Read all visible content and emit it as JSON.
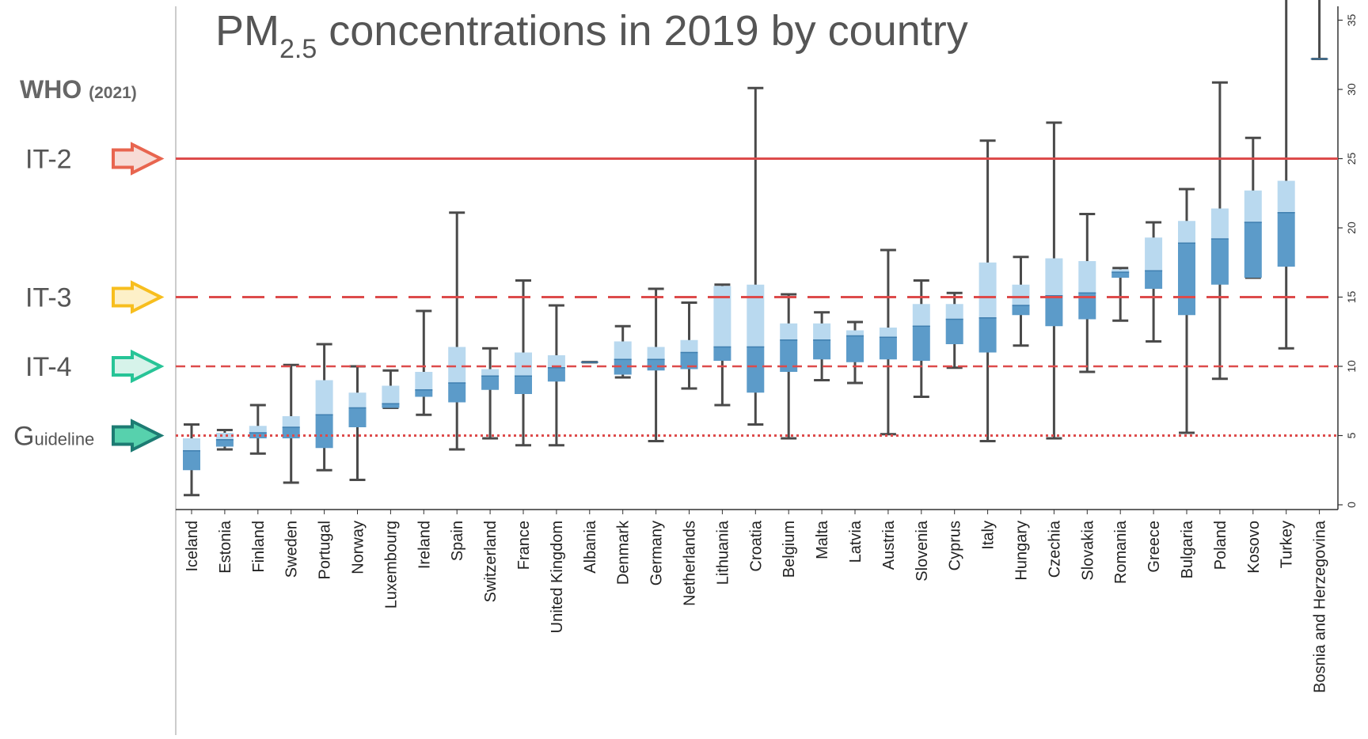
{
  "title": {
    "main": "PM",
    "sub": "2.5",
    "rest": " concentrations in 2019 by country"
  },
  "who": {
    "label": "WHO",
    "year": "(2021)"
  },
  "levels": [
    {
      "id": "it2",
      "label": "IT-2",
      "value": 25,
      "line": "solid",
      "arrow_fill": "#f7dcd6",
      "arrow_stroke": "#e8654f"
    },
    {
      "id": "it3",
      "label": "IT-3",
      "value": 15,
      "line": "long-dash",
      "arrow_fill": "#fdf0c8",
      "arrow_stroke": "#f7be1e"
    },
    {
      "id": "it4",
      "label": "IT-4",
      "value": 10,
      "line": "dash",
      "arrow_fill": "#d6f3ea",
      "arrow_stroke": "#27c497"
    },
    {
      "id": "guideline",
      "label_big": "G",
      "label_small": "uideline",
      "value": 5,
      "line": "dot",
      "arrow_fill": "#57d1ad",
      "arrow_stroke": "#1d7b73"
    }
  ],
  "colors": {
    "line": "#dd4b4b",
    "whisker": "#4a4a4a",
    "box_light": "#b9d9ef",
    "box_dark": "#5c9bc9",
    "axis_text": "#333333",
    "label_text": "#555555"
  },
  "chart_data": {
    "type": "box",
    "title": "PM2.5 concentrations in 2019 by country",
    "ylim": [
      0,
      37
    ],
    "yticks": [
      "0",
      "5",
      "10",
      "15",
      "20",
      "25",
      "30",
      "35"
    ],
    "ytick_values": [
      0,
      5,
      10,
      15,
      20,
      25,
      30,
      35
    ],
    "grid": false,
    "categories": [
      "Iceland",
      "Estonia",
      "Finland",
      "Sweden",
      "Portugal",
      "Norway",
      "Luxembourg",
      "Ireland",
      "Spain",
      "Switzerland",
      "France",
      "United Kingdom",
      "Albania",
      "Denmark",
      "Germany",
      "Netherlands",
      "Lithuania",
      "Croatia",
      "Belgium",
      "Malta",
      "Latvia",
      "Austria",
      "Slovenia",
      "Cyprus",
      "Italy",
      "Hungary",
      "Czechia",
      "Slovakia",
      "Romania",
      "Greece",
      "Bulgaria",
      "Poland",
      "Kosovo",
      "Turkey",
      "Bosnia and Herzegovina"
    ],
    "boxes": [
      {
        "min": 0.7,
        "q1": 2.5,
        "median": 3.9,
        "q3": 4.8,
        "max": 5.8
      },
      {
        "min": 4.0,
        "q1": 4.2,
        "median": 4.7,
        "q3": 5.2,
        "max": 5.4
      },
      {
        "min": 3.7,
        "q1": 4.8,
        "median": 5.2,
        "q3": 5.7,
        "max": 7.2
      },
      {
        "min": 1.6,
        "q1": 4.8,
        "median": 5.6,
        "q3": 6.4,
        "max": 10.1
      },
      {
        "min": 2.5,
        "q1": 4.1,
        "median": 6.5,
        "q3": 9.0,
        "max": 11.6
      },
      {
        "min": 1.8,
        "q1": 5.6,
        "median": 7.0,
        "q3": 8.1,
        "max": 10.0
      },
      {
        "min": 7.0,
        "q1": 7.0,
        "median": 7.3,
        "q3": 8.6,
        "max": 9.7
      },
      {
        "min": 6.5,
        "q1": 7.8,
        "median": 8.3,
        "q3": 9.6,
        "max": 14.0
      },
      {
        "min": 4.0,
        "q1": 7.4,
        "median": 8.8,
        "q3": 11.4,
        "max": 21.1
      },
      {
        "min": 4.8,
        "q1": 8.3,
        "median": 9.3,
        "q3": 9.8,
        "max": 11.3
      },
      {
        "min": 4.3,
        "q1": 8.0,
        "median": 9.3,
        "q3": 11.0,
        "max": 16.2
      },
      {
        "min": 4.3,
        "q1": 8.9,
        "median": 9.9,
        "q3": 10.8,
        "max": 14.4
      },
      {
        "min": 10.3,
        "q1": 10.3,
        "median": 10.3,
        "q3": 10.3,
        "max": 10.3
      },
      {
        "min": 9.2,
        "q1": 9.4,
        "median": 10.5,
        "q3": 11.8,
        "max": 12.9
      },
      {
        "min": 4.6,
        "q1": 9.7,
        "median": 10.5,
        "q3": 11.4,
        "max": 15.6
      },
      {
        "min": 8.4,
        "q1": 9.8,
        "median": 11.0,
        "q3": 11.9,
        "max": 14.6
      },
      {
        "min": 7.2,
        "q1": 10.4,
        "median": 11.4,
        "q3": 15.8,
        "max": 15.9
      },
      {
        "min": 5.8,
        "q1": 8.1,
        "median": 11.4,
        "q3": 15.9,
        "max": 30.1
      },
      {
        "min": 4.8,
        "q1": 9.6,
        "median": 11.9,
        "q3": 13.1,
        "max": 15.2
      },
      {
        "min": 9.0,
        "q1": 10.5,
        "median": 11.9,
        "q3": 13.1,
        "max": 13.9
      },
      {
        "min": 8.8,
        "q1": 10.3,
        "median": 12.2,
        "q3": 12.6,
        "max": 13.2
      },
      {
        "min": 5.1,
        "q1": 10.5,
        "median": 12.1,
        "q3": 12.8,
        "max": 18.4
      },
      {
        "min": 7.8,
        "q1": 10.4,
        "median": 12.9,
        "q3": 14.5,
        "max": 16.2
      },
      {
        "min": 9.9,
        "q1": 11.6,
        "median": 13.4,
        "q3": 14.5,
        "max": 15.3
      },
      {
        "min": 4.6,
        "q1": 11.0,
        "median": 13.5,
        "q3": 17.5,
        "max": 26.3
      },
      {
        "min": 11.5,
        "q1": 13.7,
        "median": 14.4,
        "q3": 15.9,
        "max": 17.9
      },
      {
        "min": 4.8,
        "q1": 12.9,
        "median": 15.1,
        "q3": 17.8,
        "max": 27.6
      },
      {
        "min": 9.6,
        "q1": 13.4,
        "median": 15.3,
        "q3": 17.6,
        "max": 21.0
      },
      {
        "min": 13.3,
        "q1": 16.4,
        "median": 16.8,
        "q3": 17.0,
        "max": 17.1
      },
      {
        "min": 11.8,
        "q1": 15.6,
        "median": 16.9,
        "q3": 19.3,
        "max": 20.4
      },
      {
        "min": 5.2,
        "q1": 13.7,
        "median": 18.9,
        "q3": 20.5,
        "max": 22.8
      },
      {
        "min": 9.1,
        "q1": 15.9,
        "median": 19.2,
        "q3": 21.4,
        "max": 30.5
      },
      {
        "min": 16.4,
        "q1": 16.4,
        "median": 20.4,
        "q3": 22.7,
        "max": 26.5
      },
      {
        "min": 11.3,
        "q1": 17.2,
        "median": 21.1,
        "q3": 23.4,
        "max": 37.0
      },
      {
        "min": 32.2,
        "q1": 32.2,
        "median": 32.2,
        "q3": 32.2,
        "max": 37.0
      }
    ]
  }
}
